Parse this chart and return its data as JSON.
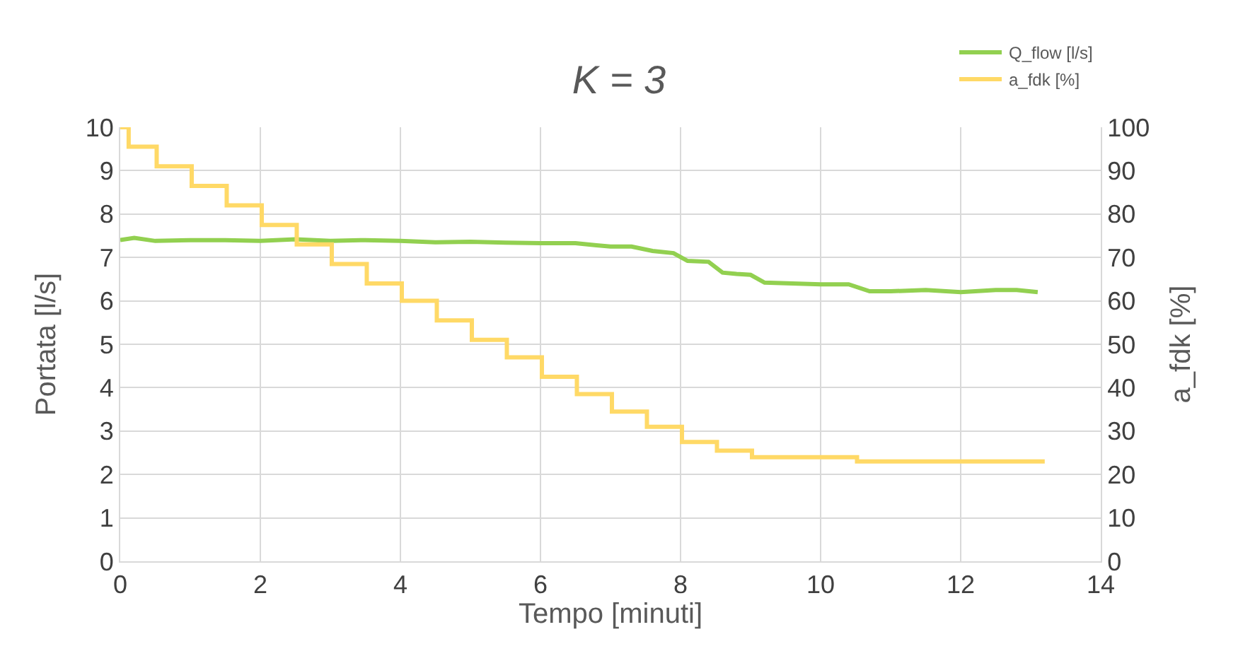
{
  "chart_data": {
    "type": "line",
    "title": "K = 3",
    "xlabel": "Tempo [minuti]",
    "ylabel": "Portata [l/s]",
    "y2label": "a_fdk [%]",
    "xlim": [
      0,
      14
    ],
    "xticks": [
      0,
      2,
      4,
      6,
      8,
      10,
      12,
      14
    ],
    "ylim": [
      0,
      10
    ],
    "yticks": [
      0,
      1,
      2,
      3,
      4,
      5,
      6,
      7,
      8,
      9,
      10
    ],
    "y2lim": [
      0,
      100
    ],
    "y2ticks": [
      0,
      10,
      20,
      30,
      40,
      50,
      60,
      70,
      80,
      90,
      100
    ],
    "grid": true,
    "legend": "top right",
    "marker": "none",
    "line_style": "solid",
    "series": [
      {
        "name": "Q_flow [l/s]",
        "color": "#92d050",
        "axis": "y",
        "x": [
          0,
          0.2,
          0.5,
          1,
          1.5,
          2,
          2.5,
          3,
          3.5,
          4,
          4.5,
          5,
          5.5,
          6,
          6.5,
          6.8,
          7,
          7.3,
          7.6,
          7.9,
          8.1,
          8.4,
          8.6,
          8.8,
          9,
          9.2,
          9.6,
          10,
          10.4,
          10.7,
          11,
          11.5,
          12,
          12.5,
          12.8,
          13.1
        ],
        "values": [
          7.4,
          7.45,
          7.38,
          7.4,
          7.4,
          7.38,
          7.42,
          7.38,
          7.4,
          7.38,
          7.35,
          7.36,
          7.34,
          7.33,
          7.33,
          7.28,
          7.25,
          7.25,
          7.15,
          7.1,
          6.92,
          6.9,
          6.65,
          6.62,
          6.6,
          6.42,
          6.4,
          6.38,
          6.38,
          6.22,
          6.22,
          6.25,
          6.2,
          6.25,
          6.25,
          6.2
        ]
      },
      {
        "name": "a_fdk [%]",
        "color": "#ffd966",
        "type": "step",
        "axis": "y2",
        "x": [
          0,
          0.12,
          0.52,
          1.02,
          1.52,
          2.02,
          2.52,
          3.02,
          3.52,
          4.02,
          4.52,
          5.02,
          5.52,
          6.02,
          6.52,
          7.02,
          7.52,
          8.02,
          8.52,
          9.02,
          10.52,
          13.2
        ],
        "values": [
          100,
          95.5,
          91,
          86.5,
          82,
          77.5,
          73,
          68.5,
          64,
          60,
          55.5,
          51,
          47,
          42.5,
          38.5,
          34.5,
          31,
          27.5,
          25.5,
          24,
          23,
          23
        ]
      }
    ]
  }
}
